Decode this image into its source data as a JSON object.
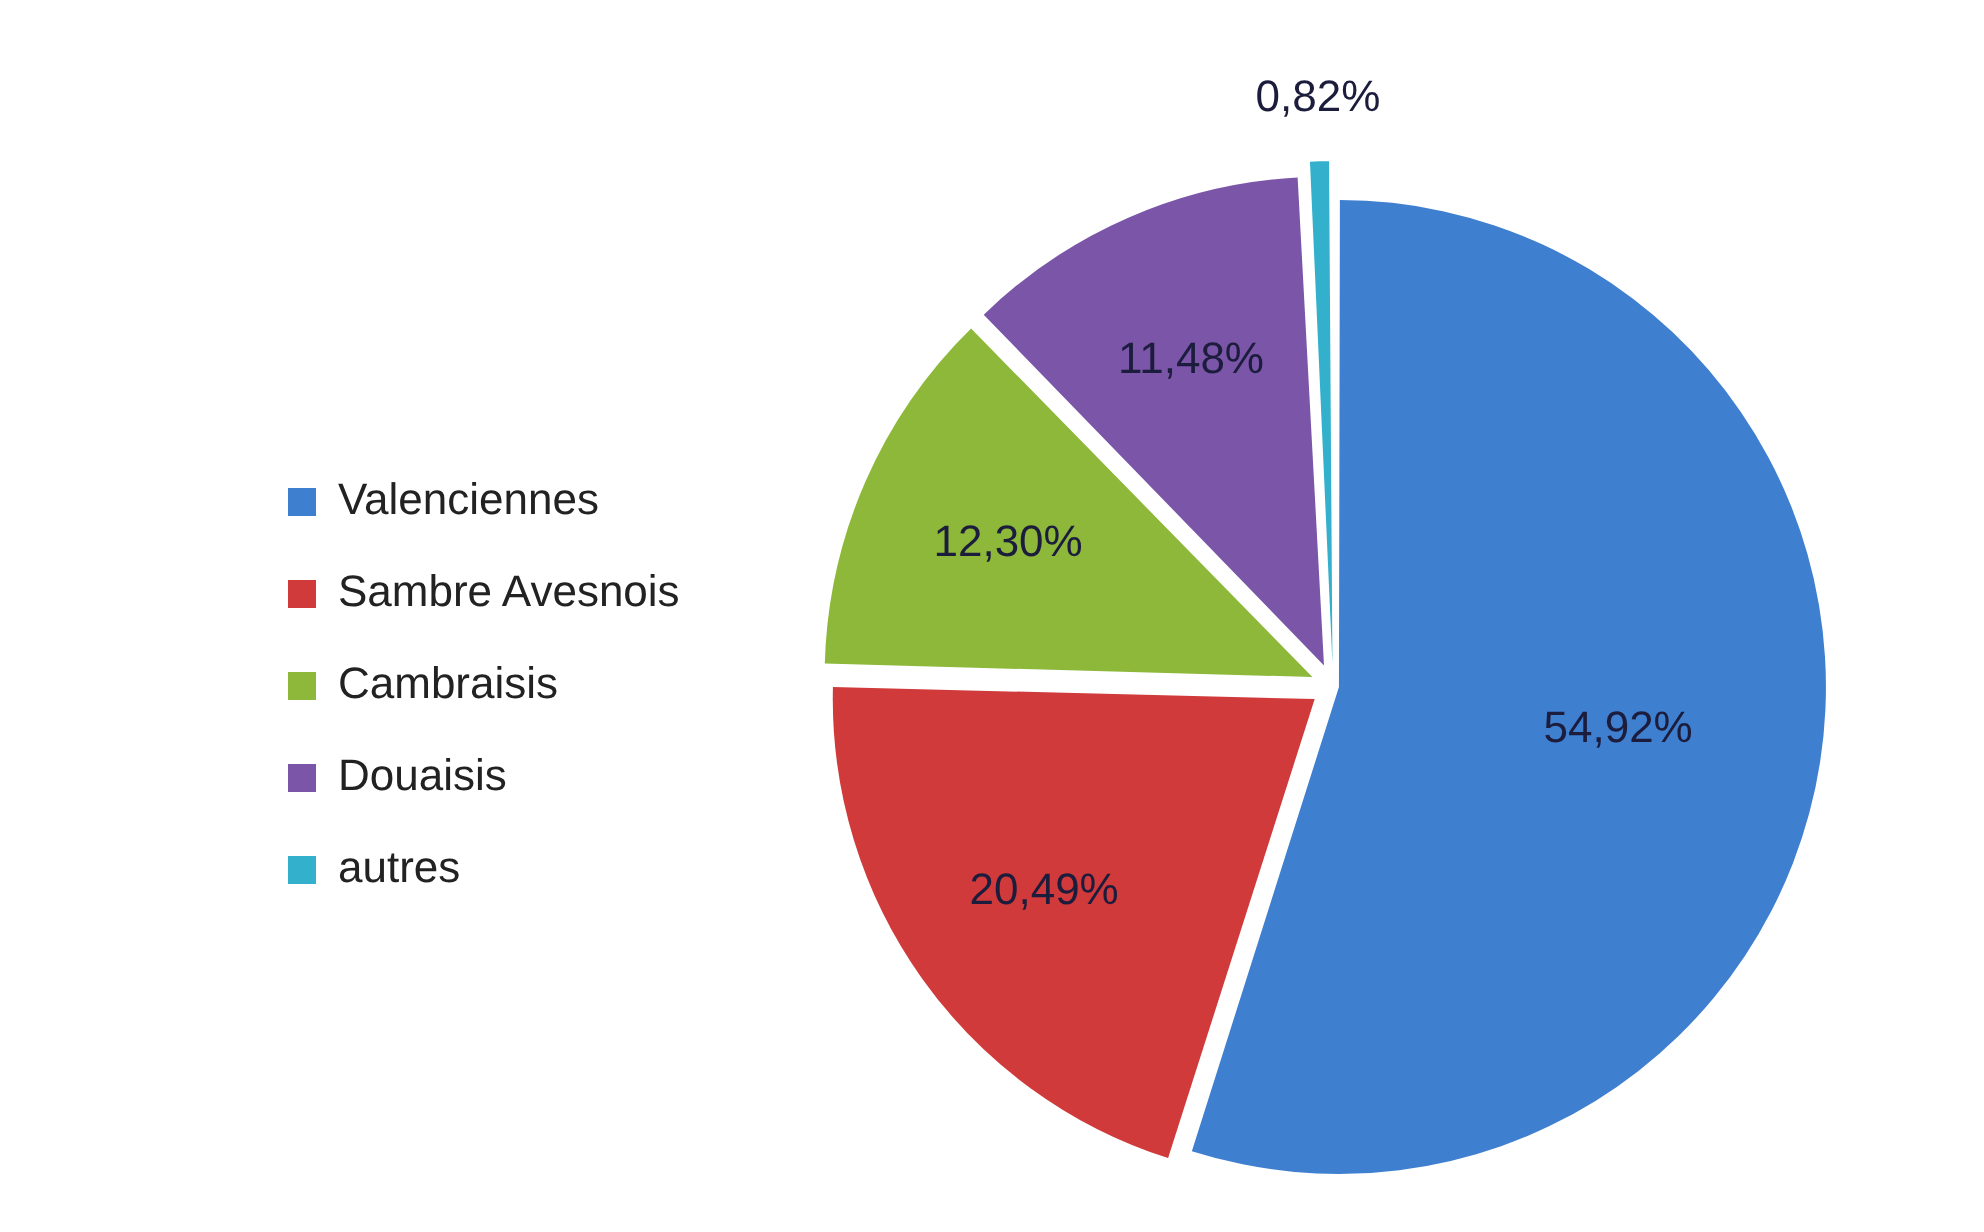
{
  "chart_data": {
    "type": "pie",
    "categories": [
      "Valenciennes",
      "Sambre Avesnois",
      "Cambraisis",
      "Douaisis",
      "autres"
    ],
    "values": [
      54.92,
      20.49,
      12.3,
      11.48,
      0.82
    ],
    "colors": [
      "#3f7fd0",
      "#d03a3a",
      "#8db83a",
      "#7a55a8",
      "#33b0cc"
    ],
    "value_labels": [
      "54,92%",
      "20,49%",
      "12,30%",
      "11,48%",
      "0,82%"
    ],
    "legend": "left"
  }
}
